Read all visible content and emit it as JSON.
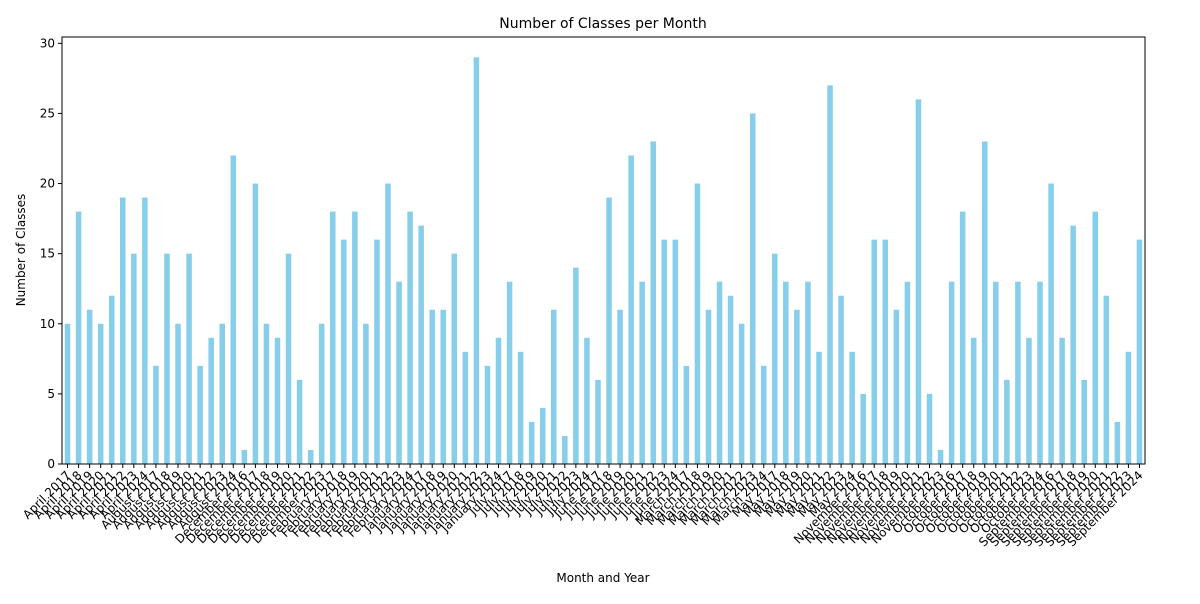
{
  "chart_data": {
    "type": "bar",
    "title": "Number of Classes per Month",
    "x_label": "Month and Year",
    "y_label": "Number of Classes",
    "categories": [
      "April 2017",
      "April 2018",
      "April 2019",
      "April 2020",
      "April 2021",
      "April 2022",
      "April 2023",
      "April 2024",
      "August 2017",
      "August 2018",
      "August 2019",
      "August 2020",
      "August 2021",
      "August 2022",
      "August 2023",
      "August 2024",
      "December 2016",
      "December 2017",
      "December 2018",
      "December 2019",
      "December 2020",
      "December 2021",
      "December 2022",
      "December 2023",
      "February 2017",
      "February 2018",
      "February 2019",
      "February 2020",
      "February 2021",
      "February 2022",
      "February 2023",
      "February 2024",
      "January 2017",
      "January 2018",
      "January 2019",
      "January 2020",
      "January 2021",
      "January 2022",
      "January 2023",
      "January 2024",
      "July 2017",
      "July 2018",
      "July 2019",
      "July 2020",
      "July 2021",
      "July 2022",
      "July 2023",
      "July 2024",
      "June 2017",
      "June 2018",
      "June 2019",
      "June 2020",
      "June 2021",
      "June 2022",
      "June 2023",
      "June 2024",
      "March 2017",
      "March 2018",
      "March 2019",
      "March 2020",
      "March 2021",
      "March 2022",
      "March 2023",
      "March 2024",
      "May 2017",
      "May 2018",
      "May 2019",
      "May 2020",
      "May 2021",
      "May 2022",
      "May 2023",
      "May 2024",
      "November 2016",
      "November 2017",
      "November 2018",
      "November 2019",
      "November 2020",
      "November 2021",
      "November 2022",
      "November 2023",
      "October 2016",
      "October 2017",
      "October 2018",
      "October 2019",
      "October 2020",
      "October 2021",
      "October 2022",
      "October 2023",
      "October 2024",
      "September 2016",
      "September 2017",
      "September 2018",
      "September 2019",
      "September 2020",
      "September 2021",
      "September 2022",
      "September 2023",
      "September 2024"
    ],
    "values": [
      10,
      18,
      11,
      10,
      12,
      19,
      15,
      19,
      7,
      15,
      10,
      15,
      7,
      9,
      10,
      22,
      1,
      20,
      10,
      9,
      15,
      6,
      1,
      10,
      18,
      16,
      18,
      10,
      16,
      20,
      13,
      18,
      17,
      11,
      11,
      15,
      8,
      29,
      7,
      9,
      13,
      8,
      3,
      4,
      11,
      2,
      14,
      9,
      6,
      19,
      11,
      22,
      13,
      23,
      16,
      16,
      7,
      20,
      11,
      13,
      12,
      10,
      25,
      7,
      15,
      13,
      11,
      13,
      8,
      27,
      12,
      8,
      5,
      16,
      16,
      11,
      13,
      26,
      5,
      1,
      13,
      18,
      9,
      23,
      13,
      6,
      13,
      9,
      13,
      20,
      9,
      17,
      6,
      18,
      12,
      3,
      8,
      16
    ],
    "color": "#87ceeb",
    "ylim": [
      0,
      30.45
    ],
    "yticks": [
      0,
      5,
      10,
      15,
      20,
      25,
      30
    ],
    "grid": false
  }
}
